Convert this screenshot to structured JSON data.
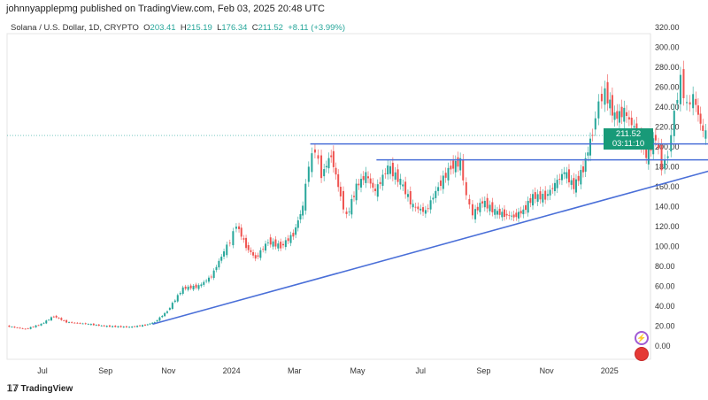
{
  "header": {
    "publisher": "johnnyapplepmg published on TradingView.com, Feb 03, 2025 20:48 UTC"
  },
  "legend": {
    "symbol": "Solana / U.S. Dollar, 1D, CRYPTO",
    "o_label": "O",
    "open": "203.41",
    "h_label": "H",
    "high": "215.19",
    "l_label": "L",
    "low": "176.34",
    "c_label": "C",
    "close": "211.52",
    "change": "+8.11 (+3.99%)"
  },
  "price_label": {
    "price": "211.52",
    "countdown": "03:11:10"
  },
  "footer": {
    "brand": "TradingView"
  },
  "colors": {
    "up": "#26a69a",
    "down": "#ef5350",
    "lines": "#4a6fd8"
  },
  "chart_data": {
    "type": "line",
    "title": "Solana / U.S. Dollar, 1D, CRYPTO",
    "ylim": [
      0,
      320
    ],
    "y_ticks": [
      "320.00",
      "300.00",
      "280.00",
      "260.00",
      "240.00",
      "220.00",
      "200.00",
      "180.00",
      "160.00",
      "140.00",
      "120.00",
      "100.00",
      "80.00",
      "60.00",
      "40.00",
      "20.00",
      "0.00"
    ],
    "x_ticks": [
      {
        "label": "Jul",
        "m": 0
      },
      {
        "label": "Sep",
        "m": 2
      },
      {
        "label": "Nov",
        "m": 4
      },
      {
        "label": "2024",
        "m": 6
      },
      {
        "label": "Mar",
        "m": 8
      },
      {
        "label": "May",
        "m": 10
      },
      {
        "label": "Jul",
        "m": 12
      },
      {
        "label": "Sep",
        "m": 14
      },
      {
        "label": "Nov",
        "m": 16
      },
      {
        "label": "2025",
        "m": 18
      }
    ],
    "x_unit": "months since Jul 2023",
    "series": [
      {
        "name": "SOLUSD",
        "points": [
          [
            -1.1,
            20
          ],
          [
            -0.5,
            17
          ],
          [
            0,
            22
          ],
          [
            0.4,
            30
          ],
          [
            0.8,
            24
          ],
          [
            1.5,
            22
          ],
          [
            2,
            20
          ],
          [
            2.8,
            19
          ],
          [
            3.3,
            21
          ],
          [
            3.6,
            24
          ],
          [
            4,
            35
          ],
          [
            4.5,
            58
          ],
          [
            5,
            60
          ],
          [
            5.4,
            70
          ],
          [
            5.8,
            95
          ],
          [
            6,
            105
          ],
          [
            6.2,
            122
          ],
          [
            6.5,
            100
          ],
          [
            6.8,
            88
          ],
          [
            7.2,
            105
          ],
          [
            7.6,
            100
          ],
          [
            8,
            112
          ],
          [
            8.3,
            140
          ],
          [
            8.5,
            182
          ],
          [
            8.7,
            198
          ],
          [
            8.9,
            172
          ],
          [
            9.2,
            192
          ],
          [
            9.5,
            150
          ],
          [
            9.7,
            130
          ],
          [
            10,
            160
          ],
          [
            10.3,
            172
          ],
          [
            10.6,
            155
          ],
          [
            11,
            180
          ],
          [
            11.4,
            165
          ],
          [
            11.8,
            140
          ],
          [
            12.2,
            135
          ],
          [
            12.6,
            160
          ],
          [
            13,
            180
          ],
          [
            13.3,
            185
          ],
          [
            13.5,
            150
          ],
          [
            13.7,
            132
          ],
          [
            14,
            145
          ],
          [
            14.4,
            135
          ],
          [
            14.7,
            132
          ],
          [
            15,
            130
          ],
          [
            15.3,
            136
          ],
          [
            15.6,
            150
          ],
          [
            16,
            150
          ],
          [
            16.3,
            162
          ],
          [
            16.6,
            175
          ],
          [
            16.9,
            160
          ],
          [
            17.2,
            178
          ],
          [
            17.5,
            215
          ],
          [
            17.7,
            245
          ],
          [
            17.9,
            255
          ],
          [
            18.2,
            230
          ],
          [
            18.5,
            235
          ],
          [
            18.9,
            215
          ],
          [
            19.2,
            190
          ],
          [
            19.5,
            210
          ],
          [
            19.7,
            180
          ],
          [
            19.9,
            192
          ],
          [
            20.1,
            235
          ],
          [
            20.3,
            268
          ],
          [
            20.5,
            240
          ],
          [
            20.7,
            250
          ],
          [
            21,
            215
          ],
          [
            21.2,
            211.52
          ]
        ]
      }
    ],
    "annotations": [
      {
        "type": "hline",
        "price": 203,
        "from_m": 8.5,
        "to_m": 21.2
      },
      {
        "type": "hline",
        "price": 187,
        "from_m": 10.6,
        "to_m": 21.2
      },
      {
        "type": "trendline",
        "from": [
          3.5,
          22
        ],
        "to": [
          21.3,
          177
        ]
      }
    ],
    "last_price": 211.52
  }
}
